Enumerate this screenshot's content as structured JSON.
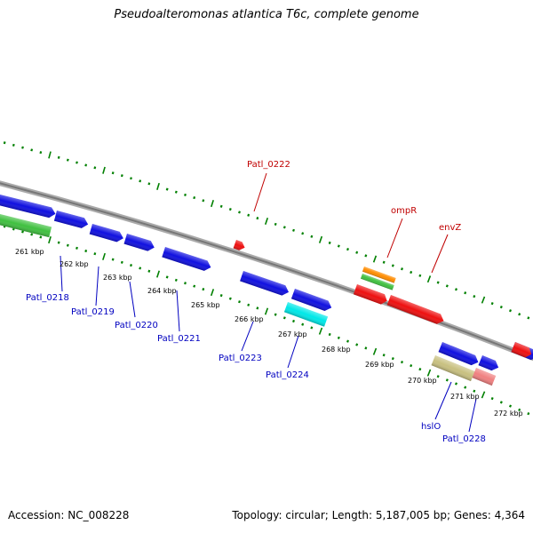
{
  "title": "Pseudoalteromonas atlantica T6c, complete genome",
  "footer": {
    "accession": "Accession: NC_008228",
    "summary": "Topology: circular; Length: 5,187,005 bp; Genes: 4,364"
  },
  "colors": {
    "backbone": "#888888",
    "ticks": "#008000",
    "label_forward": "#c00000",
    "label_reverse": "#0000c0"
  },
  "kbp_labels": [
    "261 kbp",
    "262 kbp",
    "263 kbp",
    "264 kbp",
    "265 kbp",
    "266 kbp",
    "267 kbp",
    "268 kbp",
    "269 kbp",
    "270 kbp",
    "271 kbp",
    "272 kbp"
  ],
  "genes": [
    {
      "id": "g1",
      "color": "#1010e0"
    },
    {
      "id": "g2",
      "color": "#1010e0"
    },
    {
      "id": "g3",
      "color": "#1010e0"
    },
    {
      "id": "g4",
      "color": "#1010e0"
    },
    {
      "id": "g5",
      "color": "#1010e0"
    },
    {
      "id": "g6",
      "color": "#1010e0"
    },
    {
      "id": "g7",
      "color": "#1010e0"
    },
    {
      "id": "g8",
      "color": "#1010e0"
    },
    {
      "id": "g9",
      "color": "#1010e0"
    },
    {
      "id": "g10",
      "color": "#1010e0"
    },
    {
      "id": "green1",
      "color": "#40c040"
    },
    {
      "id": "cyan",
      "color": "#00e8e8"
    },
    {
      "id": "red-small",
      "color": "#ee1010"
    },
    {
      "id": "orange",
      "color": "#ff8c00"
    },
    {
      "id": "green2",
      "color": "#40c040"
    },
    {
      "id": "red1",
      "color": "#ee1010"
    },
    {
      "id": "red2",
      "color": "#ee1010"
    },
    {
      "id": "red3",
      "color": "#ee1010"
    },
    {
      "id": "khaki",
      "color": "#c8c080"
    },
    {
      "id": "pink",
      "color": "#f08080"
    }
  ],
  "gene_labels": [
    {
      "text": "Patl_0222",
      "strand": "forward"
    },
    {
      "text": "ompR",
      "strand": "forward"
    },
    {
      "text": "envZ",
      "strand": "forward"
    },
    {
      "text": "Patl_0218",
      "strand": "reverse"
    },
    {
      "text": "Patl_0219",
      "strand": "reverse"
    },
    {
      "text": "Patl_0220",
      "strand": "reverse"
    },
    {
      "text": "Patl_0221",
      "strand": "reverse"
    },
    {
      "text": "Patl_0223",
      "strand": "reverse"
    },
    {
      "text": "Patl_0224",
      "strand": "reverse"
    },
    {
      "text": "hslO",
      "strand": "reverse"
    },
    {
      "text": "Patl_0228",
      "strand": "reverse"
    }
  ]
}
